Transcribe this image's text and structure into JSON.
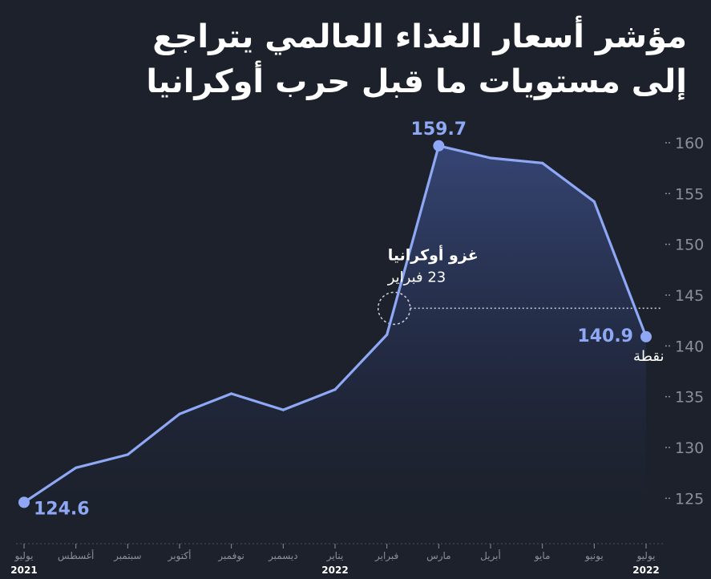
{
  "title_lines": [
    "مؤشر أسعار الغذاء العالمي يتراجع",
    "إلى مستويات ما قبل حرب أوكرانيا"
  ],
  "colors": {
    "background": "#1c212b",
    "line": "#8fa8f5",
    "text": "#ffffff",
    "muted": "#8a8f99",
    "grid": "#4a505c"
  },
  "chart_data": {
    "type": "line",
    "x": [
      "2021-07",
      "2021-08",
      "2021-09",
      "2021-10",
      "2021-11",
      "2021-12",
      "2022-01",
      "2022-02",
      "2022-03",
      "2022-04",
      "2022-05",
      "2022-06",
      "2022-07"
    ],
    "tick_labels": [
      "يوليو",
      "أغسطس",
      "سبتمبر",
      "أكتوبر",
      "نوفمبر",
      "ديسمبر",
      "يناير",
      "فبراير",
      "مارس",
      "أبريل",
      "مايو",
      "يونيو",
      "يوليو"
    ],
    "year_labels": [
      "2021",
      "",
      "",
      "",
      "",
      "",
      "2022",
      "",
      "",
      "",
      "",
      "",
      "2022"
    ],
    "series": [
      {
        "values": [
          124.6,
          128.0,
          129.3,
          133.3,
          135.3,
          133.7,
          135.7,
          141.1,
          159.7,
          158.5,
          158.0,
          154.2,
          140.9
        ]
      }
    ],
    "ylim": [
      121,
      163
    ],
    "yticks": [
      125,
      130,
      135,
      140,
      145,
      150,
      155,
      160
    ],
    "y_axis_side": "right",
    "grid": false,
    "legend": "none",
    "annotations": [
      {
        "label": "124.6"
      },
      {
        "label": "159.7"
      },
      {
        "label": "140.9",
        "sublabel": "نقطة"
      },
      {
        "label": "غزو أوكرانيا",
        "sublabel": "23 فبراير"
      }
    ]
  }
}
